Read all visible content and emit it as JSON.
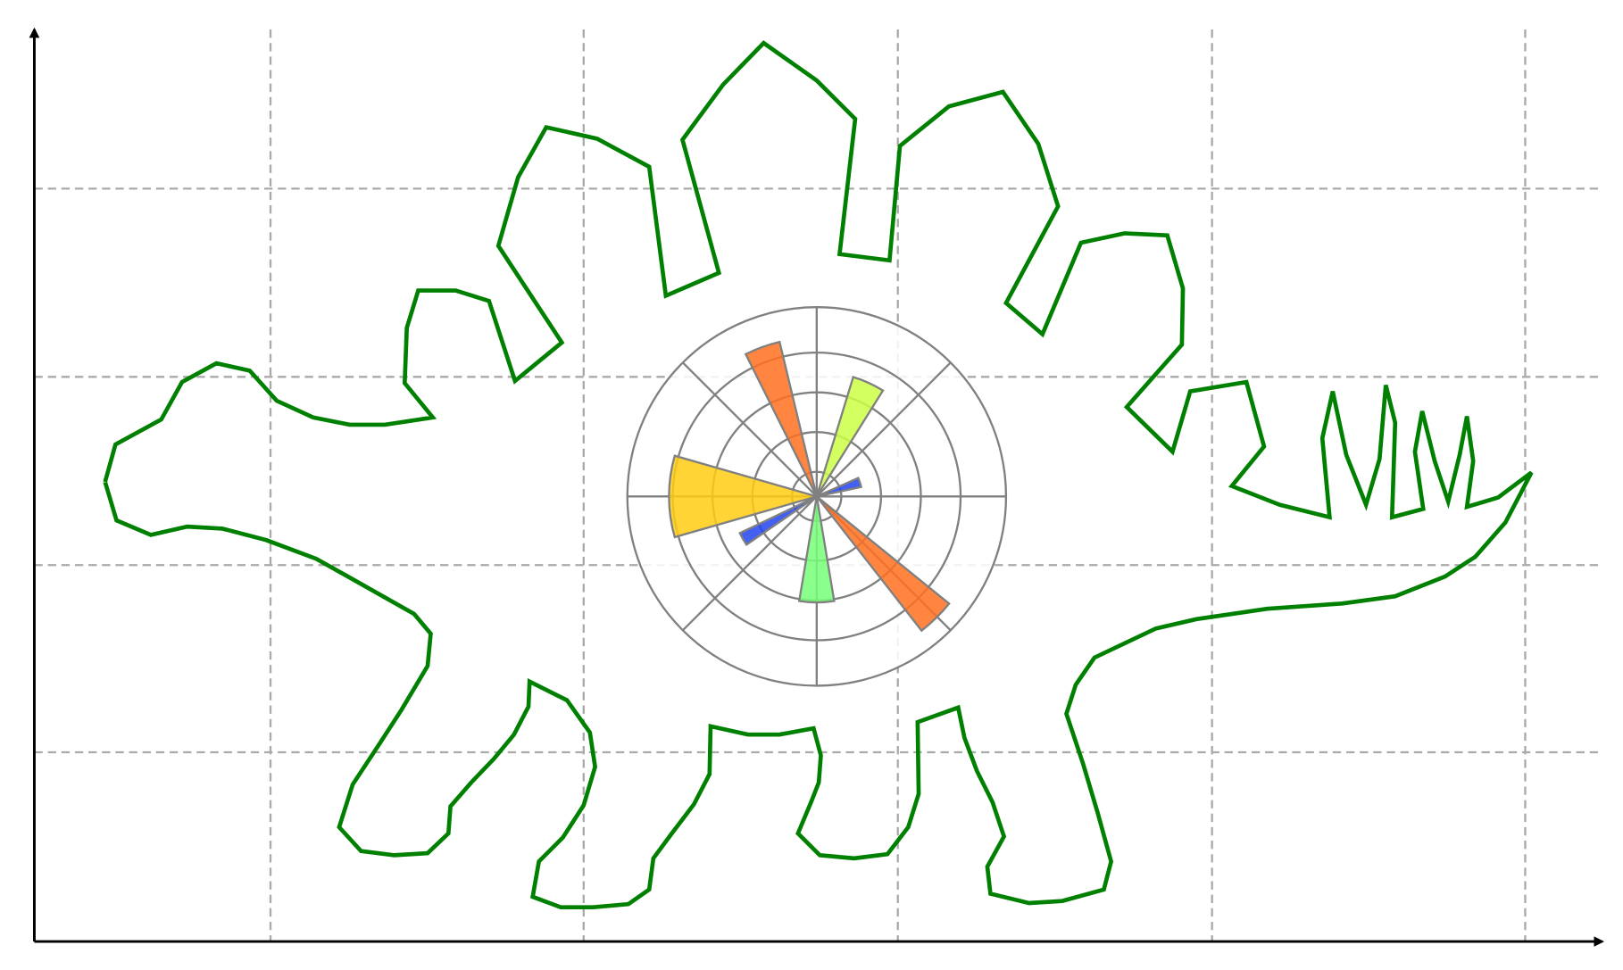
{
  "chart_data": [
    {
      "type": "line",
      "grid": true,
      "xlim": [
        33,
        1540
      ],
      "ylim": [
        0,
        877
      ],
      "xticks": [
        260,
        561,
        863,
        1165,
        1466
      ],
      "yticks": [
        182,
        362,
        543,
        724
      ],
      "series": [
        {
          "color": "#008000",
          "x": [
            101,
            111,
            155,
            175,
            208,
            240,
            266,
            301,
            336,
            370,
            416,
            389,
            391,
            402,
            438,
            470,
            495,
            540,
            479,
            498,
            525,
            574,
            624,
            640,
            691,
            656,
            695,
            734,
            785,
            822,
            807,
            855,
            865,
            912,
            964,
            998,
            1017,
            967,
            1002,
            1039,
            1081,
            1122,
            1137,
            1136,
            1083,
            1127,
            1144,
            1198,
            1215,
            1184,
            1230,
            1278,
            1271,
            1281,
            1294,
            1313,
            1326,
            1332,
            1341,
            1338,
            1368,
            1360,
            1367,
            1379,
            1392,
            1403,
            1410,
            1416,
            1410,
            1440,
            1472,
            1447,
            1418,
            1389,
            1341,
            1290,
            1218,
            1150,
            1111,
            1052,
            1034,
            1025,
            1041,
            1055,
            1068,
            1061,
            1021,
            989,
            952,
            949,
            965,
            954,
            939,
            927,
            921,
            882,
            883,
            873,
            853,
            821,
            788,
            767,
            780,
            787,
            789,
            782,
            749,
            719,
            683,
            682,
            667,
            645,
            628,
            624,
            604,
            570,
            539,
            512,
            518,
            541,
            561,
            572,
            567,
            545,
            509,
            508,
            494,
            475,
            453,
            433,
            431,
            411,
            379,
            347,
            326,
            339,
            364,
            386,
            411,
            414,
            398,
            345,
            304,
            256,
            214,
            180,
            145,
            112,
            101
          ],
          "values": [
            442,
            478,
            502,
            538,
            556,
            549,
            520,
            504,
            497,
            497,
            504,
            537,
            590,
            626,
            626,
            616,
            539,
            576,
            669,
            735,
            783,
            772,
            745,
            621,
            643,
            771,
            824,
            864,
            828,
            791,
            661,
            655,
            765,
            803,
            817,
            767,
            707,
            614,
            584,
            672,
            681,
            679,
            628,
            574,
            514,
            471,
            529,
            538,
            476,
            438,
            420,
            408,
            484,
            529,
            468,
            420,
            464,
            535,
            499,
            408,
            416,
            471,
            510,
            462,
            423,
            468,
            505,
            462,
            418,
            427,
            451,
            403,
            370,
            351,
            332,
            325,
            320,
            310,
            301,
            273,
            247,
            219,
            171,
            124,
            77,
            50,
            39,
            37,
            46,
            72,
            101,
            134,
            164,
            196,
            225,
            211,
            142,
            110,
            84,
            80,
            83,
            104,
            135,
            153,
            179,
            205,
            199,
            199,
            207,
            161,
            132,
            103,
            80,
            50,
            36,
            33,
            33,
            43,
            77,
            100,
            131,
            168,
            201,
            232,
            250,
            226,
            199,
            176,
            153,
            130,
            104,
            85,
            83,
            87,
            110,
            151,
            189,
            223,
            265,
            296,
            315,
            345,
            368,
            386,
            397,
            399,
            391,
            405,
            442
          ]
        }
      ]
    },
    {
      "type": "polar",
      "rlim": [
        0,
        1
      ],
      "rticks": [
        0.13,
        0.34,
        0.55,
        0.76
      ],
      "thetaticks": [
        0,
        45,
        90,
        135,
        180,
        225,
        270,
        315
      ],
      "theta": [
        110,
        65.5,
        18,
        180,
        210,
        270,
        314.5
      ],
      "width": [
        13,
        15,
        12,
        32,
        9,
        19,
        13
      ],
      "radii": [
        0.84,
        0.66,
        0.24,
        0.78,
        0.45,
        0.56,
        0.9
      ],
      "colors": [
        "#ff7020",
        "#ccff44",
        "#2244ee",
        "#ffcc11",
        "#2244ee",
        "#77ff77",
        "#ff7020"
      ]
    }
  ]
}
